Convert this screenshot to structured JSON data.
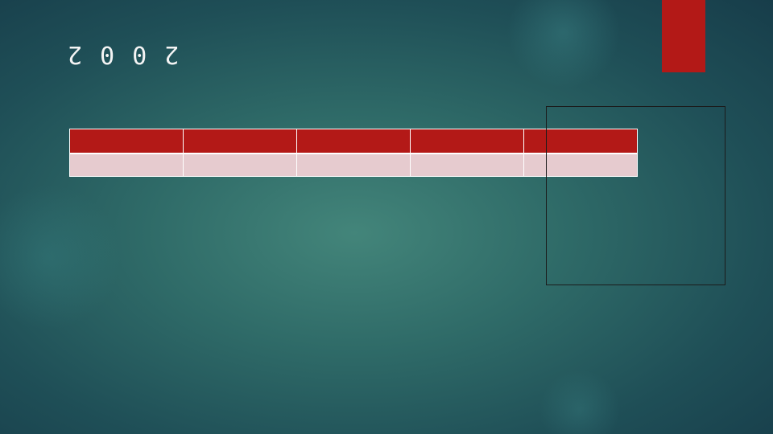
{
  "slide": {
    "title": "2002",
    "colors": {
      "accent": "#b31917",
      "header_fill": "#b31917",
      "row_fill": "#e6cbcf",
      "background_center": "#43857a",
      "background_edge": "#173d4a"
    }
  },
  "table": {
    "headers": [
      "",
      "",
      "",
      "",
      ""
    ],
    "rows": [
      [
        "",
        "",
        "",
        "",
        ""
      ]
    ]
  }
}
